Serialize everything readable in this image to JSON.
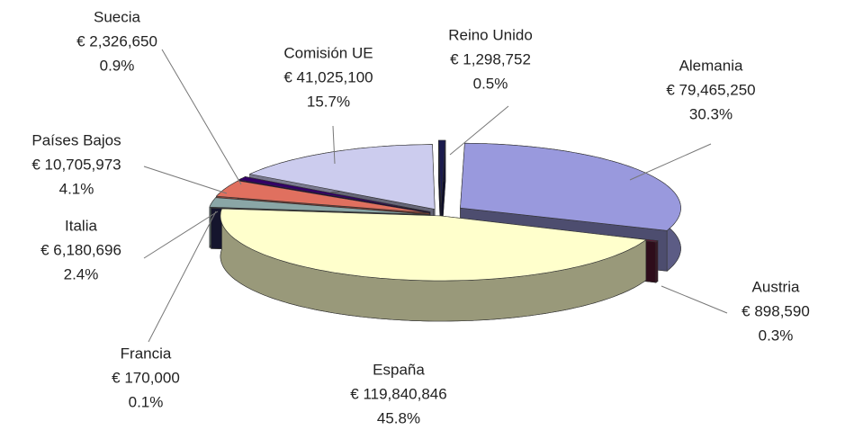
{
  "chart_data": {
    "type": "pie3d",
    "categories": [
      "Alemania",
      "Austria",
      "España",
      "Francia",
      "Italia",
      "Países Bajos",
      "Suecia",
      "Comisión UE",
      "Reino Unido"
    ],
    "values": [
      79465250,
      898590,
      119840846,
      170000,
      6180696,
      10705973,
      2326650,
      41025100,
      1298752
    ],
    "value_labels": [
      "€ 79,465,250",
      "€ 898,590",
      "€ 119,840,846",
      "€ 170,000",
      "€ 6,180,696",
      "€ 10,705,973",
      "€ 2,326,650",
      "€ 41,025,100",
      "€ 1,298,752"
    ],
    "percents": [
      30.3,
      0.3,
      45.8,
      0.1,
      2.4,
      4.1,
      0.9,
      15.7,
      0.5
    ],
    "percent_labels": [
      "30.3%",
      "0.3%",
      "45.8%",
      "0.1%",
      "2.4%",
      "4.1%",
      "0.9%",
      "15.7%",
      "0.5%"
    ],
    "colors": [
      "#9999dd",
      "#5c1a36",
      "#ffffcc",
      "#2a2a5a",
      "#8aa6a6",
      "#e0705f",
      "#330066",
      "#ccccee",
      "#1a1a4d"
    ]
  }
}
